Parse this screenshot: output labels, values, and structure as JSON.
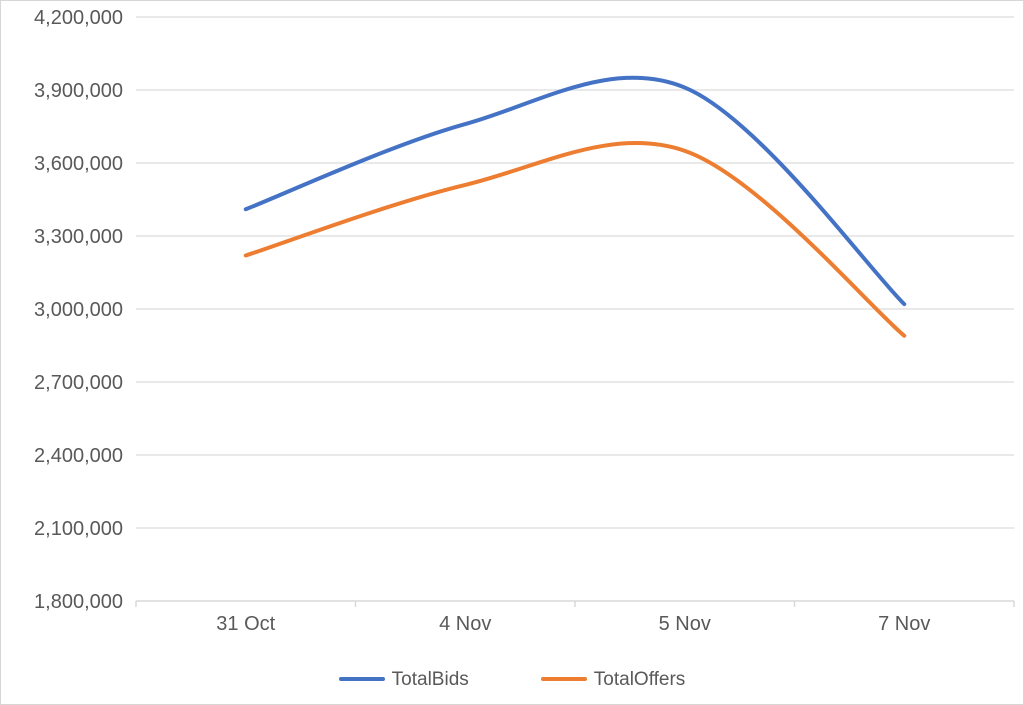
{
  "window": {
    "background_color": "#ffffff",
    "border_color": "#d6d6d6"
  },
  "chart_data": {
    "type": "line",
    "smooth": true,
    "grid": true,
    "title": "",
    "xlabel": "",
    "ylabel": "",
    "legend_position": "bottom",
    "categories": [
      "31 Oct",
      "4 Nov",
      "5 Nov",
      "7 Nov"
    ],
    "series": [
      {
        "name": "TotalBids",
        "color": "#4472C4",
        "values": [
          3410000,
          3760000,
          3910000,
          3020000
        ]
      },
      {
        "name": "TotalOffers",
        "color": "#ED7D31",
        "values": [
          3220000,
          3510000,
          3650000,
          2890000
        ]
      }
    ],
    "ylim": [
      1800000,
      4200000
    ],
    "ytick_step": 300000,
    "ytick_labels": [
      "4,200,000",
      "3,900,000",
      "3,600,000",
      "3,300,000",
      "3,000,000",
      "2,700,000",
      "2,400,000",
      "2,100,000",
      "1,800,000"
    ],
    "styles": {
      "gridline_color": "#e2e2e2",
      "axis_color": "#d9d9d9",
      "label_color": "#595959",
      "line_width": 4
    }
  }
}
